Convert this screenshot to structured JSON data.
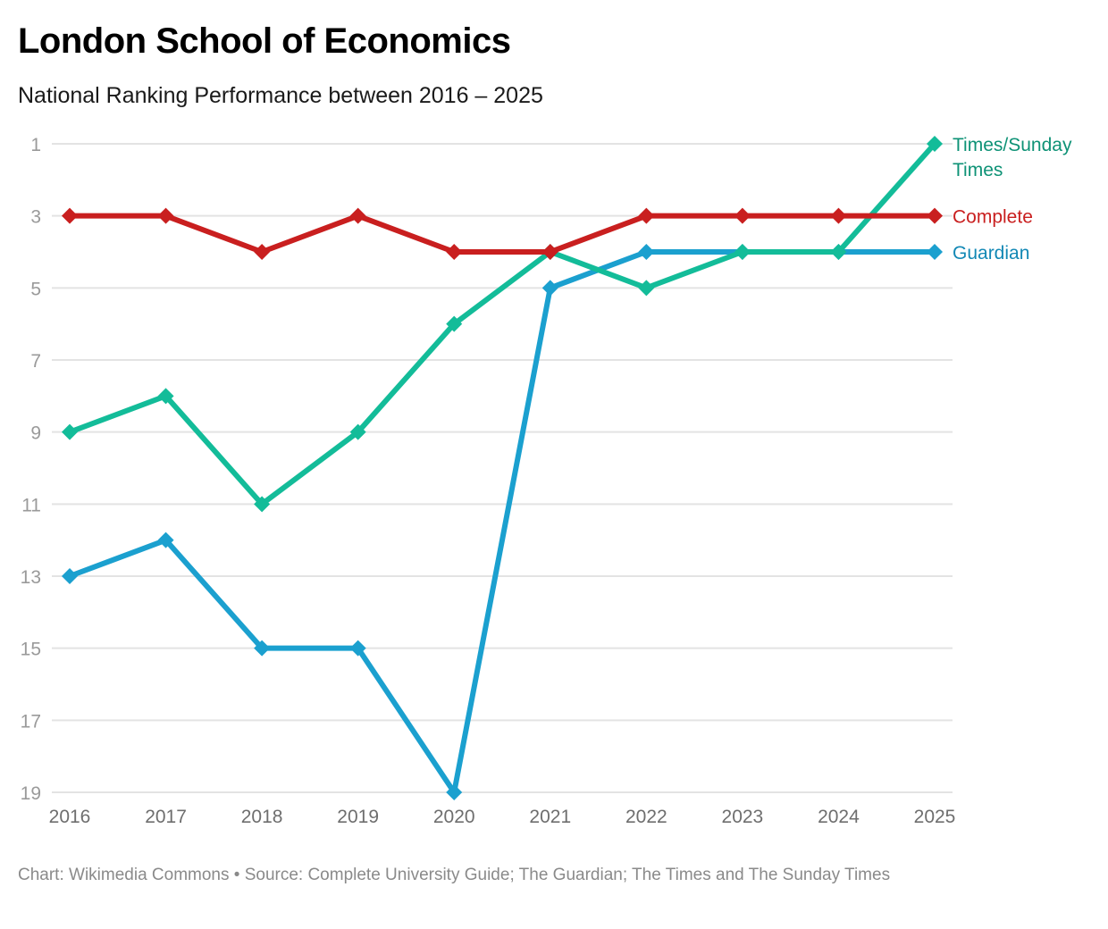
{
  "header": {
    "title": "London School of Economics",
    "subtitle": "National Ranking Performance between 2016 – 2025"
  },
  "footer": {
    "text": "Chart: Wikimedia Commons • Source: Complete University Guide; The Guardian; The Times and The Sunday Times"
  },
  "chart_data": {
    "type": "line",
    "title": "London School of Economics",
    "subtitle": "National Ranking Performance between 2016 – 2025",
    "xlabel": "",
    "ylabel": "",
    "x": [
      "2016",
      "2017",
      "2018",
      "2019",
      "2020",
      "2021",
      "2022",
      "2023",
      "2024",
      "2025"
    ],
    "y_ticks": [
      1,
      3,
      5,
      7,
      9,
      11,
      13,
      15,
      17,
      19
    ],
    "ylim": [
      1,
      19
    ],
    "y_inverted": true,
    "grid": true,
    "legend_placement": "right (direct labels at line ends)",
    "marker": "diamond",
    "series": [
      {
        "name": "Times/Sunday Times",
        "label_lines": [
          "Times/Sunday",
          "Times"
        ],
        "color": "#13BC99",
        "label_color": "#0E9276",
        "values": [
          9,
          8,
          11,
          9,
          6,
          4,
          5,
          4,
          4,
          1
        ]
      },
      {
        "name": "Complete",
        "label_lines": [
          "Complete"
        ],
        "color": "#C91F1F",
        "label_color": "#C91F1F",
        "values": [
          3,
          3,
          4,
          3,
          4,
          4,
          3,
          3,
          3,
          3
        ]
      },
      {
        "name": "Guardian",
        "label_lines": [
          "Guardian"
        ],
        "color": "#1BA0CF",
        "label_color": "#1288B5",
        "values": [
          13,
          12,
          15,
          15,
          19,
          5,
          4,
          4,
          4,
          4
        ]
      }
    ],
    "source": "Complete University Guide; The Guardian; The Times and The Sunday Times",
    "credit": "Wikimedia Commons"
  }
}
